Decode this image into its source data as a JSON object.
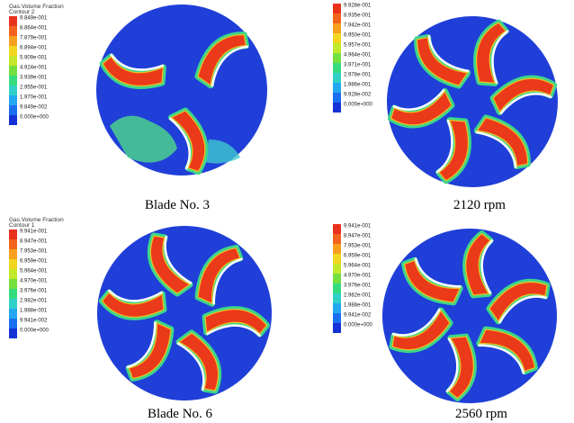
{
  "panels": [
    {
      "legend_title": "Gas.Volume Fraction",
      "legend_subtitle": "Contour 2",
      "legend_labels": [
        "9.849e-001",
        "8.864e-001",
        "7.879e-001",
        "6.894e-001",
        "5.909e-001",
        "4.924e-001",
        "3.939e-001",
        "2.955e-001",
        "1.970e-001",
        "9.849e-002",
        "0.000e+000"
      ],
      "caption": "Blade No. 3"
    },
    {
      "legend_labels": [
        "9.928e-001",
        "8.935e-001",
        "7.942e-001",
        "6.950e-001",
        "5.957e-001",
        "4.964e-001",
        "3.971e-001",
        "2.978e-001",
        "1.986e-001",
        "9.928e-002",
        "0.000e+000"
      ],
      "caption": "2120 rpm"
    },
    {
      "legend_title": "Gas.Volume Fraction",
      "legend_subtitle": "Contour 1",
      "legend_labels": [
        "9.941e-001",
        "8.947e-001",
        "7.953e-001",
        "6.959e-001",
        "5.964e-001",
        "4.970e-001",
        "3.976e-001",
        "2.982e-001",
        "1.988e-001",
        "9.941e-002",
        "0.000e+000"
      ],
      "caption": "Blade No. 6"
    },
    {
      "legend_labels": [
        "9.941e-001",
        "8.947e-001",
        "7.953e-001",
        "6.959e-001",
        "5.964e-001",
        "4.970e-001",
        "3.976e-001",
        "2.982e-001",
        "1.988e-001",
        "9.941e-002",
        "0.000e+000"
      ],
      "caption": "2560 rpm"
    }
  ]
}
